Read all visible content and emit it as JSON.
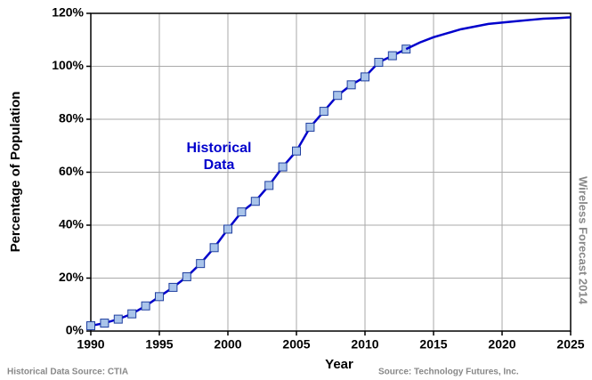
{
  "chart_data": {
    "type": "line",
    "xlabel": "Year",
    "ylabel": "Percentage of Population",
    "annotations": [
      "Historical Data Source: CTIA",
      "Source: Technology Futures, Inc.",
      "Wireless Forecast 2014"
    ],
    "series": [
      {
        "name": "Historical Data",
        "color": "#0000cc",
        "marker": "square",
        "marker_color": "#a9c4ea",
        "x": [
          1990,
          1991,
          1992,
          1993,
          1994,
          1995,
          1996,
          1997,
          1998,
          1999,
          2000,
          2001,
          2002,
          2003,
          2004,
          2005,
          2006,
          2007,
          2008,
          2009,
          2010,
          2011,
          2012,
          2013
        ],
        "values": [
          2,
          3,
          4.5,
          6.5,
          9.5,
          13,
          16.5,
          20.5,
          25.5,
          31.5,
          38.5,
          45,
          49,
          55,
          62,
          68,
          77,
          83,
          89,
          93,
          96,
          101.5,
          104,
          106.5
        ]
      },
      {
        "color": "#0000cc",
        "x": [
          2013,
          2014,
          2015,
          2016,
          2017,
          2018,
          2019,
          2020,
          2021,
          2022,
          2023,
          2024,
          2025
        ],
        "values": [
          106.5,
          109,
          111,
          112.5,
          114,
          115,
          116,
          116.5,
          117,
          117.5,
          118,
          118.2,
          118.5
        ]
      }
    ],
    "xlim": [
      1990,
      2025
    ],
    "xticks": [
      1990,
      1995,
      2000,
      2005,
      2010,
      2015,
      2020,
      2025
    ],
    "ylim": [
      0,
      120
    ],
    "yticks": [
      {
        "value": 0,
        "label": "0%"
      },
      {
        "value": 20,
        "label": "20%"
      },
      {
        "value": 40,
        "label": "40%"
      },
      {
        "value": 60,
        "label": "60%"
      },
      {
        "value": 80,
        "label": "80%"
      },
      {
        "value": 100,
        "label": "100%"
      },
      {
        "value": 120,
        "label": "120%"
      }
    ],
    "grid": true
  }
}
